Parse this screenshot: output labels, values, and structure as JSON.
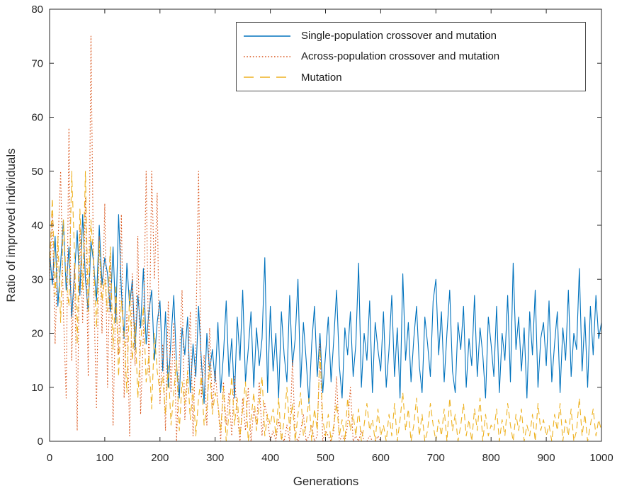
{
  "figure": {
    "background": "#ffffff",
    "axis_color": "#262626"
  },
  "chart_data": {
    "type": "line",
    "title": "",
    "xlabel": "Generations",
    "ylabel": "Ratio of improved individuals",
    "xlim": [
      0,
      1000
    ],
    "ylim": [
      0,
      80
    ],
    "xticks": [
      0,
      100,
      200,
      300,
      400,
      500,
      600,
      700,
      800,
      900,
      1000
    ],
    "yticks": [
      0,
      10,
      20,
      30,
      40,
      50,
      60,
      70,
      80
    ],
    "grid": false,
    "legend_position": "upper-right-inside",
    "x_start": 0,
    "x_step": 5,
    "series": [
      {
        "name": "Single-population crossover and mutation",
        "color": "#0072BD",
        "style": "solid",
        "values": [
          35,
          29,
          38,
          25,
          33,
          41,
          28,
          36,
          23,
          31,
          39,
          27,
          42,
          30,
          24,
          37,
          33,
          26,
          40,
          29,
          34,
          31,
          24,
          36,
          22,
          42,
          28,
          19,
          33,
          25,
          30,
          17,
          27,
          21,
          32,
          18,
          24,
          28,
          15,
          22,
          26,
          13,
          24,
          10,
          19,
          27,
          14,
          8,
          21,
          16,
          23,
          9,
          18,
          12,
          25,
          15,
          7,
          20,
          13,
          17,
          11,
          22,
          9,
          16,
          26,
          12,
          19,
          8,
          23,
          15,
          28,
          11,
          17,
          24,
          10,
          21,
          14,
          19,
          34,
          9,
          25,
          13,
          20,
          8,
          24,
          16,
          11,
          27,
          14,
          19,
          30,
          10,
          22,
          15,
          7,
          18,
          25,
          12,
          20,
          9,
          16,
          23,
          11,
          19,
          28,
          14,
          8,
          21,
          16,
          24,
          12,
          18,
          33,
          10,
          20,
          15,
          26,
          9,
          22,
          17,
          13,
          24,
          10,
          17,
          27,
          12,
          21,
          8,
          31,
          15,
          22,
          11,
          19,
          25,
          14,
          9,
          23,
          18,
          12,
          26,
          30,
          16,
          24,
          11,
          20,
          28,
          13,
          9,
          22,
          17,
          25,
          10,
          19,
          14,
          27,
          12,
          21,
          16,
          8,
          23,
          18,
          12,
          25,
          9,
          20,
          15,
          27,
          11,
          33,
          17,
          23,
          13,
          21,
          8,
          24,
          16,
          28,
          10,
          19,
          22,
          14,
          26,
          11,
          18,
          24,
          9,
          21,
          15,
          28,
          12,
          20,
          17,
          32,
          13,
          23,
          10,
          25,
          16,
          27,
          19,
          22
        ]
      },
      {
        "name": "Across-population crossover and mutation",
        "color": "#D95319",
        "style": "dotted",
        "values": [
          30,
          42,
          18,
          36,
          50,
          24,
          8,
          58,
          15,
          33,
          2,
          40,
          22,
          45,
          12,
          75,
          28,
          6,
          38,
          20,
          44,
          10,
          35,
          3,
          27,
          16,
          42,
          8,
          24,
          1,
          31,
          14,
          38,
          5,
          20,
          50,
          12,
          50,
          30,
          46,
          7,
          18,
          2,
          26,
          9,
          22,
          0,
          15,
          28,
          4,
          12,
          24,
          1,
          19,
          50,
          8,
          16,
          3,
          21,
          6,
          13,
          7,
          0,
          11,
          3,
          9,
          1,
          12,
          5,
          0,
          8,
          2,
          10,
          0,
          6,
          3,
          11,
          1,
          7,
          4,
          0,
          2,
          0,
          4,
          1,
          0,
          3,
          0,
          15,
          1,
          0,
          2,
          5,
          0,
          1,
          3,
          0,
          1,
          18,
          0,
          2,
          1,
          0,
          2,
          12,
          0,
          1,
          0,
          3,
          10,
          0,
          1,
          0,
          2,
          0,
          0,
          1,
          0,
          0,
          1,
          0,
          0,
          0,
          0,
          0,
          0,
          0,
          0,
          0,
          0,
          0,
          0,
          0,
          0,
          0,
          0,
          0,
          0,
          0,
          0,
          0,
          0,
          0,
          0,
          0,
          0,
          0,
          0,
          0,
          0,
          0,
          0,
          0,
          0,
          0,
          0,
          0,
          0,
          0,
          0,
          0,
          0,
          0,
          0,
          0,
          0,
          0,
          0,
          0,
          0,
          0,
          0,
          0,
          0,
          0,
          0,
          0,
          0,
          0,
          0,
          0,
          0,
          0,
          0,
          0,
          0,
          0,
          0,
          0,
          0,
          0,
          0,
          0,
          0,
          0,
          0,
          0,
          0,
          0,
          0,
          0
        ]
      },
      {
        "name": "Mutation",
        "color": "#EDB120",
        "style": "dashed",
        "values": [
          32,
          45,
          27,
          38,
          22,
          41,
          30,
          25,
          50,
          35,
          18,
          43,
          28,
          50,
          24,
          41,
          33,
          21,
          37,
          26,
          30,
          24,
          36,
          17,
          29,
          12,
          26,
          20,
          9,
          28,
          15,
          22,
          8,
          18,
          25,
          11,
          16,
          6,
          20,
          13,
          9,
          12,
          5,
          14,
          3,
          9,
          15,
          2,
          11,
          7,
          13,
          4,
          10,
          1,
          8,
          12,
          3,
          6,
          14,
          5,
          9,
          7,
          2,
          10,
          0,
          5,
          12,
          3,
          8,
          1,
          6,
          11,
          0,
          4,
          9,
          2,
          7,
          12,
          1,
          5,
          3,
          6,
          1,
          8,
          0,
          4,
          10,
          2,
          7,
          0,
          5,
          9,
          1,
          3,
          8,
          0,
          6,
          2,
          17,
          4,
          1,
          5,
          0,
          3,
          7,
          1,
          4,
          0,
          8,
          2,
          5,
          1,
          6,
          0,
          3,
          7,
          2,
          4,
          0,
          6,
          1,
          3,
          0,
          5,
          1,
          7,
          0,
          4,
          9,
          2,
          6,
          0,
          3,
          8,
          1,
          5,
          0,
          2,
          7,
          3,
          0,
          4,
          1,
          6,
          0,
          8,
          2,
          5,
          0,
          3,
          7,
          1,
          4,
          0,
          6,
          2,
          8,
          0,
          5,
          1,
          3,
          2,
          6,
          0,
          4,
          1,
          7,
          3,
          0,
          5,
          2,
          6,
          0,
          3,
          1,
          5,
          0,
          7,
          2,
          4,
          1,
          3,
          0,
          5,
          2,
          7,
          0,
          4,
          1,
          6,
          0,
          2,
          8,
          1,
          5,
          0,
          3,
          6,
          1,
          4,
          2
        ]
      }
    ]
  }
}
